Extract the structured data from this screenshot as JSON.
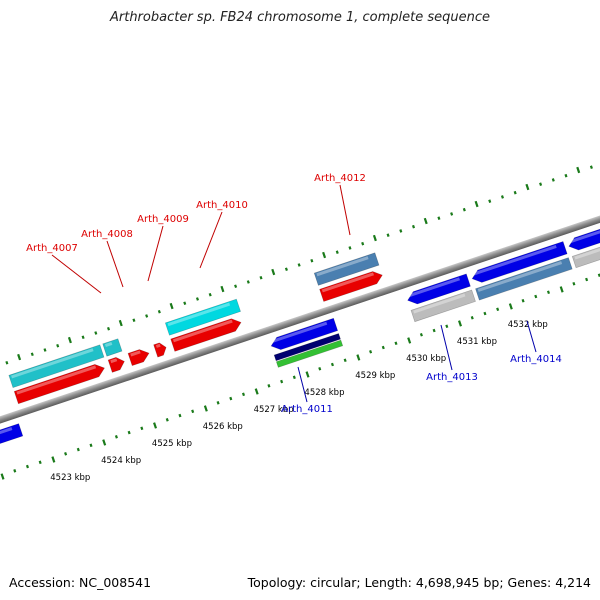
{
  "title": "Arthrobacter sp. FB24 chromosome 1, complete sequence",
  "footer": {
    "accession": "Accession: NC_008541",
    "summary": "Topology: circular; Length: 4,698,945 bp; Genes: 4,214"
  },
  "colors": {
    "forward_cds": "#e80000",
    "forward_gene_cyan": "#00d8e0",
    "forward_gene_teal": "#20c0c8",
    "reverse_cds": "#0000e6",
    "reverse_gene_steel": "#4a7fb0",
    "reverse_gray": "#bcbcbc",
    "tick": "#1a7a1a",
    "forward_label": "#dd0000",
    "reverse_label": "#0000cc"
  },
  "scale_labels": [
    "4523 kbp",
    "4524 kbp",
    "4525 kbp",
    "4526 kbp",
    "4527 kbp",
    "4528 kbp",
    "4529 kbp",
    "4530 kbp",
    "4531 kbp",
    "4532 kbp"
  ],
  "forward_labels": [
    "Arth_4007",
    "Arth_4008",
    "Arth_4009",
    "Arth_4010",
    "Arth_4012"
  ],
  "reverse_labels": [
    "Arth_4011",
    "Arth_4013",
    "Arth_4014"
  ]
}
